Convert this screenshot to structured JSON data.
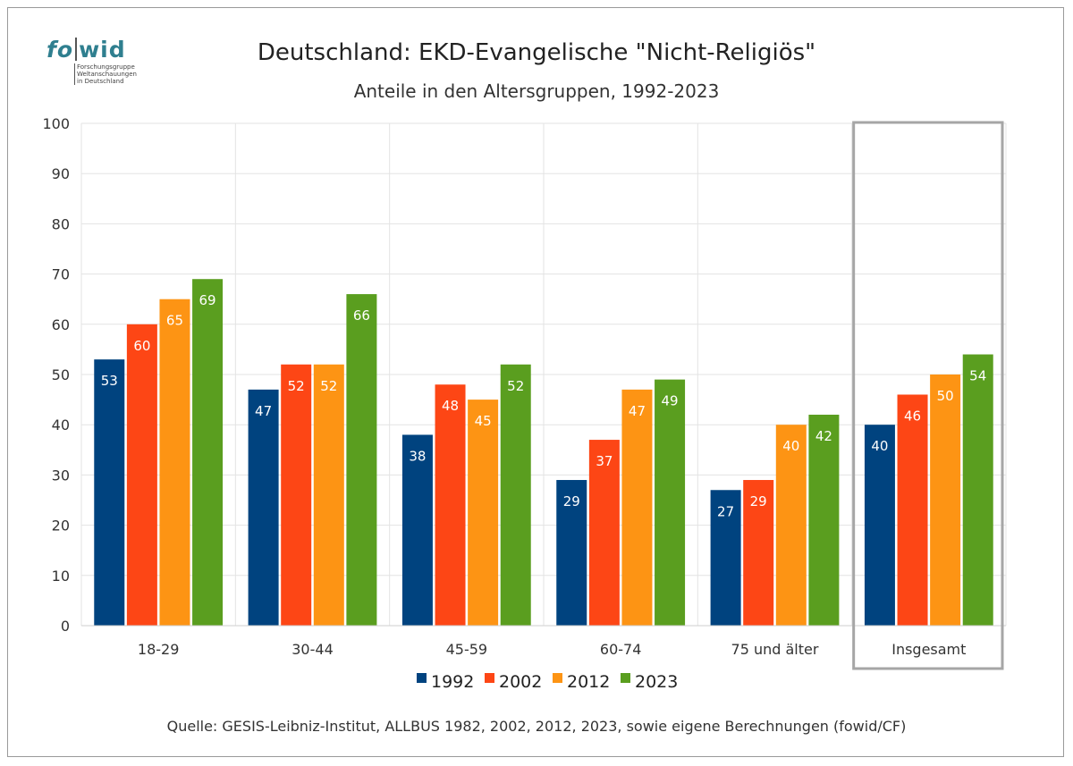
{
  "logo": {
    "word_left": "fo",
    "word_right": "wid",
    "subtitle_lines": [
      "Forschungsgruppe",
      "Weltanschauungen",
      "in Deutschland"
    ]
  },
  "colors": {
    "1992": "#00437f",
    "2002": "#fd4615",
    "2012": "#fd9414",
    "2023": "#5a9e1f",
    "highlight_box": "#a6a6a6",
    "grid": "#e3e3e3"
  },
  "chart_data": {
    "type": "bar",
    "title": "Deutschland: EKD-Evangelische \"Nicht-Religiös\"",
    "subtitle": "Anteile in den Altersgruppen, 1992-2023",
    "categories": [
      "18-29",
      "30-44",
      "45-59",
      "60-74",
      "75 und älter",
      "Insgesamt"
    ],
    "series": [
      {
        "name": "1992",
        "values": [
          53,
          47,
          38,
          29,
          27,
          40
        ]
      },
      {
        "name": "2002",
        "values": [
          60,
          52,
          48,
          37,
          29,
          46
        ]
      },
      {
        "name": "2012",
        "values": [
          65,
          52,
          45,
          47,
          40,
          50
        ]
      },
      {
        "name": "2023",
        "values": [
          69,
          66,
          52,
          49,
          42,
          54
        ]
      }
    ],
    "ylim": [
      0,
      100
    ],
    "yticks": [
      0,
      10,
      20,
      30,
      40,
      50,
      60,
      70,
      80,
      90,
      100
    ],
    "grid": true,
    "legend_position": "bottom",
    "highlighted_category": "Insgesamt"
  },
  "source": "Quelle: GESIS-Leibniz-Institut, ALLBUS 1982, 2002, 2012, 2023, sowie eigene Berechnungen (fowid/CF)"
}
